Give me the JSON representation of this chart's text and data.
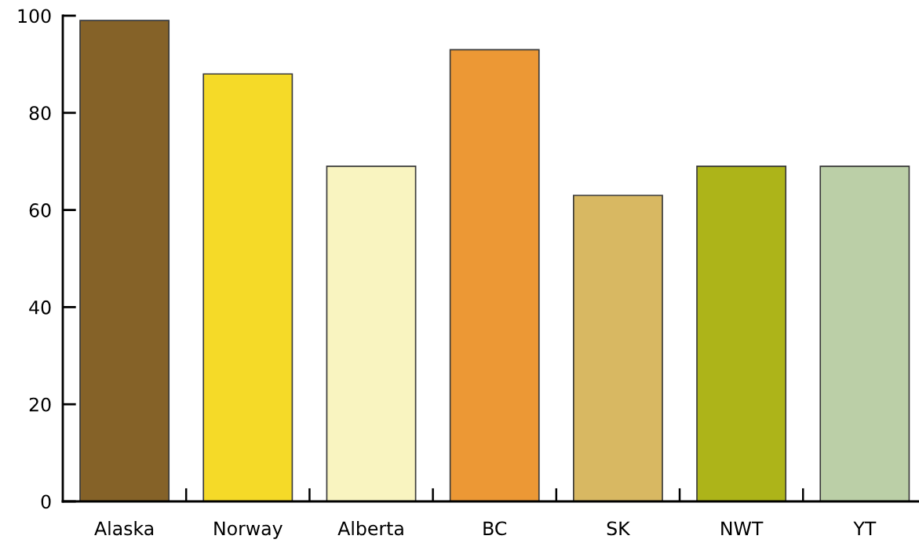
{
  "chart_data": {
    "type": "bar",
    "categories": [
      "Alaska",
      "Norway",
      "Alberta",
      "BC",
      "SK",
      "NWT",
      "YT"
    ],
    "values": [
      99,
      88,
      69,
      93,
      63,
      69,
      69
    ],
    "colors": [
      "#856228",
      "#f5da28",
      "#f9f4c0",
      "#ec9835",
      "#d8b862",
      "#adb419",
      "#bbcfa7"
    ],
    "ylim": [
      0,
      100
    ],
    "yticks": [
      0,
      20,
      40,
      60,
      80,
      100
    ],
    "grid": false,
    "legend": false
  }
}
